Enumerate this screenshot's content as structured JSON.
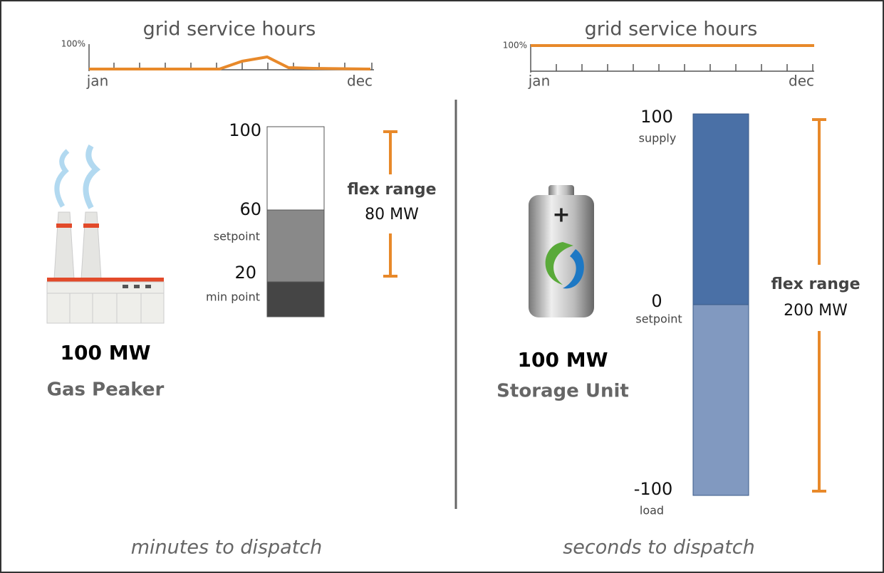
{
  "left": {
    "sparkline": {
      "title": "grid service hours",
      "y_label": "100%",
      "start": "jan",
      "end": "dec"
    },
    "levels": [
      {
        "value": "100"
      },
      {
        "value": "60",
        "label": "setpoint"
      },
      {
        "value": "20",
        "label": "min point"
      }
    ],
    "flex": {
      "label": "flex range",
      "amount": "80 MW"
    },
    "capacity": "100 MW",
    "name": "Gas Peaker",
    "footer": "minutes to dispatch"
  },
  "right": {
    "sparkline": {
      "title": "grid service hours",
      "y_label": "100%",
      "start": "jan",
      "end": "dec"
    },
    "levels": [
      {
        "value": "100",
        "label": "supply"
      },
      {
        "value": "0",
        "label": "setpoint"
      },
      {
        "value": "-100",
        "label": "load"
      }
    ],
    "flex": {
      "label": "flex range",
      "amount": "200 MW"
    },
    "capacity": "100 MW",
    "name": "Storage Unit",
    "footer": "seconds to dispatch"
  }
}
